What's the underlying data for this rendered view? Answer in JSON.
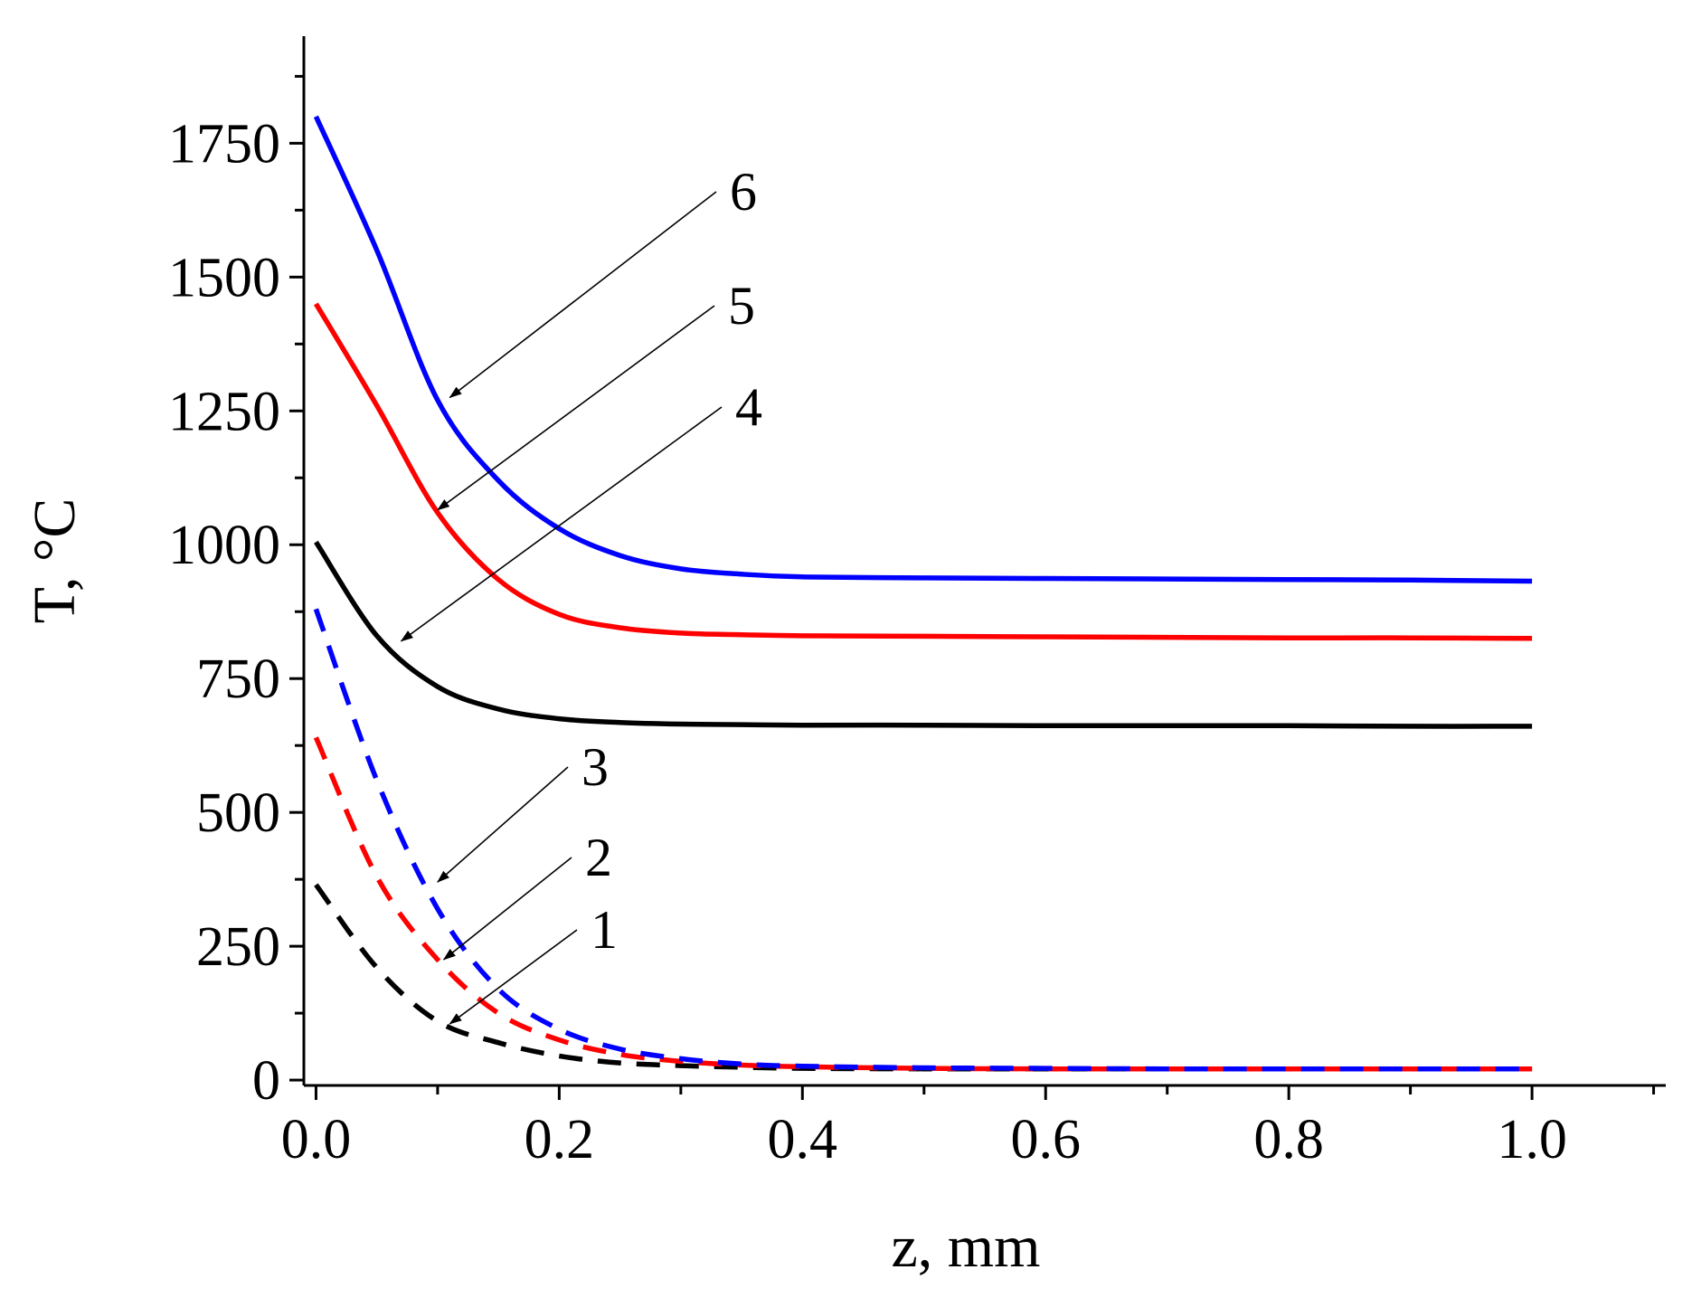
{
  "chart_data": {
    "type": "line",
    "xlabel": "z, mm",
    "ylabel": "T, °C",
    "xlim": [
      -0.01,
      1.11
    ],
    "ylim": [
      -10,
      1950
    ],
    "x_ticks": [
      "0.0",
      "0.2",
      "0.4",
      "0.6",
      "0.8",
      "1.0"
    ],
    "y_ticks": [
      "0",
      "250",
      "500",
      "750",
      "1000",
      "1250",
      "1500",
      "1750"
    ],
    "colors": {
      "black": "#000000",
      "red": "#ff0000",
      "blue": "#0000ff"
    },
    "series": [
      {
        "label": "1",
        "color": "#000000",
        "style": "dashed",
        "x": [
          0,
          0.05,
          0.1,
          0.15,
          0.2,
          0.25,
          0.3,
          0.35,
          0.4,
          0.5,
          0.6,
          0.7,
          0.8,
          0.9,
          1.0
        ],
        "y": [
          365,
          210,
          110,
          70,
          45,
          32,
          27,
          24,
          22,
          21,
          21,
          21,
          21,
          21,
          21
        ]
      },
      {
        "label": "2",
        "color": "#ff0000",
        "style": "dashed",
        "x": [
          0,
          0.05,
          0.1,
          0.15,
          0.2,
          0.25,
          0.3,
          0.35,
          0.4,
          0.5,
          0.6,
          0.7,
          0.8,
          0.9,
          1.0
        ],
        "y": [
          640,
          380,
          225,
          125,
          75,
          48,
          35,
          28,
          25,
          22,
          21,
          21,
          21,
          21,
          21
        ]
      },
      {
        "label": "3",
        "color": "#0000ff",
        "style": "dashed",
        "x": [
          0,
          0.05,
          0.1,
          0.15,
          0.2,
          0.25,
          0.3,
          0.35,
          0.4,
          0.5,
          0.6,
          0.7,
          0.8,
          0.9,
          1.0
        ],
        "y": [
          880,
          560,
          320,
          170,
          95,
          58,
          40,
          30,
          26,
          23,
          22,
          21,
          21,
          21,
          21
        ]
      },
      {
        "label": "4",
        "color": "#000000",
        "style": "solid",
        "x": [
          0,
          0.05,
          0.1,
          0.15,
          0.2,
          0.25,
          0.3,
          0.35,
          0.4,
          0.5,
          0.6,
          0.7,
          0.8,
          0.9,
          1.0
        ],
        "y": [
          1005,
          830,
          735,
          693,
          675,
          668,
          665,
          664,
          663,
          663,
          662,
          662,
          662,
          661,
          661
        ]
      },
      {
        "label": "5",
        "color": "#ff0000",
        "style": "solid",
        "x": [
          0,
          0.05,
          0.1,
          0.15,
          0.2,
          0.25,
          0.3,
          0.35,
          0.4,
          0.5,
          0.6,
          0.7,
          0.8,
          0.9,
          1.0
        ],
        "y": [
          1450,
          1260,
          1060,
          935,
          870,
          845,
          835,
          832,
          830,
          829,
          828,
          827,
          826,
          826,
          825
        ]
      },
      {
        "label": "6",
        "color": "#0000ff",
        "style": "solid",
        "x": [
          0,
          0.05,
          0.1,
          0.15,
          0.2,
          0.25,
          0.3,
          0.35,
          0.4,
          0.5,
          0.6,
          0.7,
          0.8,
          0.9,
          1.0
        ],
        "y": [
          1800,
          1550,
          1270,
          1120,
          1030,
          980,
          955,
          945,
          940,
          938,
          937,
          936,
          935,
          934,
          932
        ]
      }
    ],
    "annotations": [
      {
        "text": "1",
        "arrow_to": [
          0.11,
          105
        ]
      },
      {
        "text": "2",
        "arrow_to": [
          0.105,
          225
        ]
      },
      {
        "text": "3",
        "arrow_to": [
          0.1,
          370
        ]
      },
      {
        "text": "4",
        "arrow_to": [
          0.07,
          820
        ]
      },
      {
        "text": "5",
        "arrow_to": [
          0.1,
          1065
        ]
      },
      {
        "text": "6",
        "arrow_to": [
          0.11,
          1275
        ]
      }
    ]
  }
}
